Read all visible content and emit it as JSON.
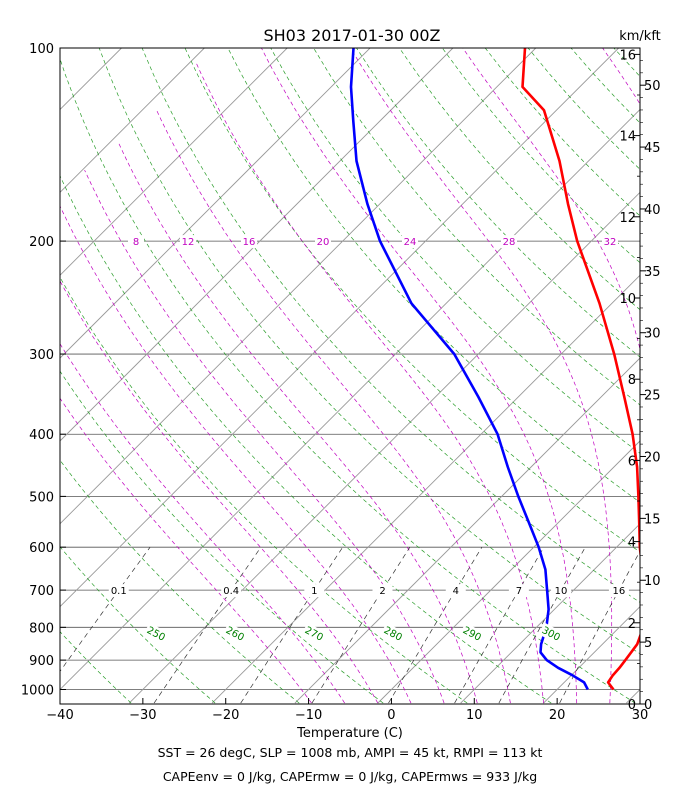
{
  "chart_data": {
    "type": "skew-t log-p",
    "title": "SH03 2017-01-30 00Z",
    "xlabel": "Temperature (C)",
    "ylabel_right": "km/kft",
    "xlim": [
      -40,
      30
    ],
    "plim": [
      1050,
      100
    ],
    "x_ticks": [
      "−40",
      "−30",
      "−20",
      "−10",
      "0",
      "10",
      "20",
      "30"
    ],
    "p_ticks": [
      100,
      200,
      300,
      400,
      500,
      600,
      700,
      800,
      900,
      1000
    ],
    "km_ticks": [
      0,
      2,
      4,
      6,
      8,
      10,
      12,
      14,
      16
    ],
    "kft_ticks": [
      0,
      5,
      10,
      15,
      20,
      25,
      30,
      35,
      40,
      45,
      50
    ],
    "mixing_ratio_labels": [
      "0.1",
      "0.4",
      "1",
      "2",
      "4",
      "7",
      "10",
      "16"
    ],
    "mixing_ratio_values": [
      0.1,
      0.4,
      1,
      2,
      4,
      7,
      10,
      16
    ],
    "dry_adiabat_labels": [
      "250",
      "260",
      "270",
      "280",
      "290",
      "300"
    ],
    "moist_adiabat_labels": [
      "8",
      "12",
      "16",
      "20",
      "24",
      "28",
      "32"
    ],
    "series": [
      {
        "role": "temperature",
        "color": "#ff0000",
        "points": [
          {
            "p": 1000,
            "t": 26.8
          },
          {
            "p": 975,
            "t": 25.3
          },
          {
            "p": 950,
            "t": 25.0
          },
          {
            "p": 925,
            "t": 24.9
          },
          {
            "p": 900,
            "t": 24.7
          },
          {
            "p": 850,
            "t": 24.2
          },
          {
            "p": 800,
            "t": 22.9
          },
          {
            "p": 750,
            "t": 20.7
          },
          {
            "p": 700,
            "t": 18.3
          },
          {
            "p": 650,
            "t": 15.8
          },
          {
            "p": 600,
            "t": 12.8
          },
          {
            "p": 550,
            "t": 9.8
          },
          {
            "p": 500,
            "t": 6.5
          },
          {
            "p": 450,
            "t": 2.8
          },
          {
            "p": 400,
            "t": -1.7
          },
          {
            "p": 350,
            "t": -7.2
          },
          {
            "p": 300,
            "t": -13.6
          },
          {
            "p": 250,
            "t": -21.5
          },
          {
            "p": 200,
            "t": -31.7
          },
          {
            "p": 175,
            "t": -37.3
          },
          {
            "p": 150,
            "t": -43.5
          },
          {
            "p": 125,
            "t": -51.5
          },
          {
            "p": 115,
            "t": -56.9
          },
          {
            "p": 100,
            "t": -61.3
          }
        ]
      },
      {
        "role": "dewpoint",
        "color": "#0000ff",
        "points": [
          {
            "p": 1000,
            "t": 23.7
          },
          {
            "p": 975,
            "t": 22.4
          },
          {
            "p": 950,
            "t": 20.1
          },
          {
            "p": 925,
            "t": 17.5
          },
          {
            "p": 900,
            "t": 15.2
          },
          {
            "p": 875,
            "t": 13.5
          },
          {
            "p": 850,
            "t": 12.6
          },
          {
            "p": 800,
            "t": 11.2
          },
          {
            "p": 750,
            "t": 9.3
          },
          {
            "p": 700,
            "t": 6.8
          },
          {
            "p": 650,
            "t": 4.1
          },
          {
            "p": 600,
            "t": 0.6
          },
          {
            "p": 550,
            "t": -3.5
          },
          {
            "p": 500,
            "t": -8.0
          },
          {
            "p": 450,
            "t": -12.8
          },
          {
            "p": 400,
            "t": -18.0
          },
          {
            "p": 350,
            "t": -24.8
          },
          {
            "p": 300,
            "t": -32.9
          },
          {
            "p": 250,
            "t": -44.2
          },
          {
            "p": 200,
            "t": -55.5
          },
          {
            "p": 175,
            "t": -61.5
          },
          {
            "p": 150,
            "t": -68.0
          },
          {
            "p": 130,
            "t": -73.2
          },
          {
            "p": 115,
            "t": -77.6
          },
          {
            "p": 100,
            "t": -82.0
          }
        ]
      }
    ]
  },
  "footer": {
    "line1": "SST = 26 degC, SLP = 1008 mb, AMPI = 45 kt, RMPI = 113 kt",
    "line2": "CAPEenv = 0 J/kg, CAPErmw = 0 J/kg, CAPErmws = 933 J/kg"
  }
}
